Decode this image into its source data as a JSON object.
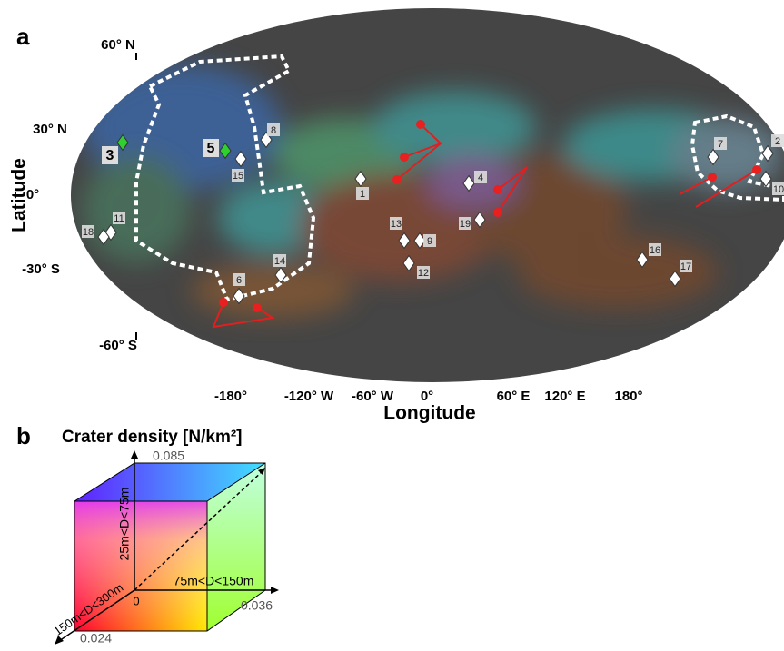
{
  "panel_a": {
    "label": "a",
    "lat_ticks": [
      "60° N",
      "30° N",
      "0°",
      "-30° S",
      "-60° S"
    ],
    "lon_ticks": [
      "-180°",
      "-120° W",
      "-60° W",
      "0°",
      "60° E",
      "120° E",
      "180°"
    ],
    "y_axis_label": "Latitude",
    "x_axis_label": "Longitude",
    "sites": [
      "1",
      "2",
      "4",
      "6",
      "7",
      "8",
      "9",
      "10",
      "11",
      "12",
      "13",
      "14",
      "15",
      "16",
      "17",
      "18",
      "19"
    ],
    "highlight_sites": [
      "3",
      "5"
    ]
  },
  "panel_b": {
    "label": "b",
    "title": "Crater density [N/km²]",
    "vertical_max": "0.085",
    "horizontal_max": "0.036",
    "depth_max": "0.024",
    "origin": "0",
    "vertical_axis": "25m<D<75m",
    "horizontal_axis": "75m<D<150m",
    "depth_axis": "150m<D<300m"
  }
}
